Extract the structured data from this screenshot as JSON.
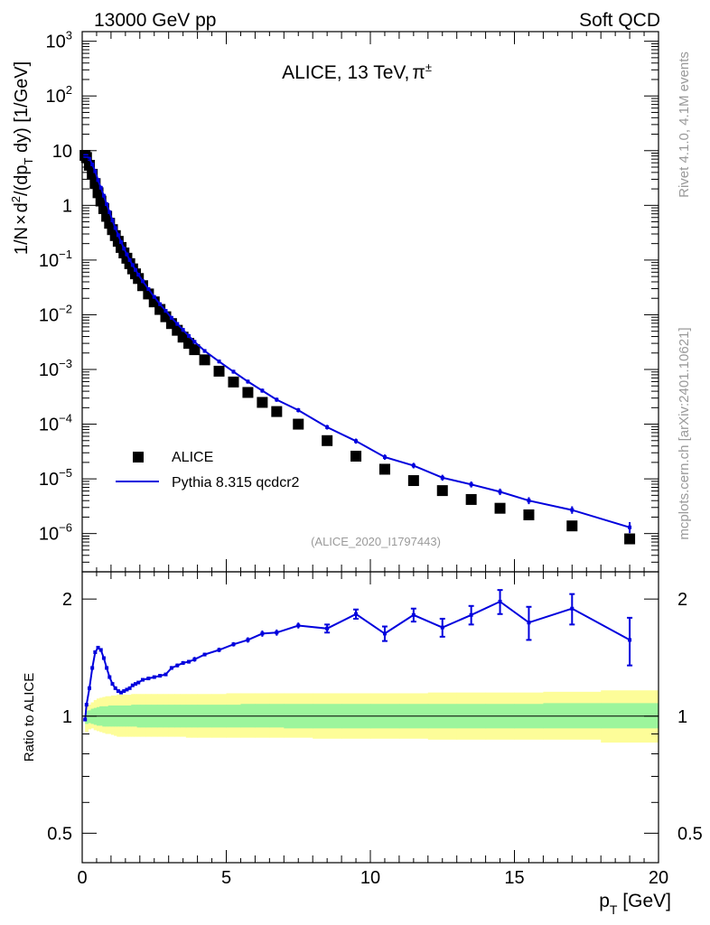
{
  "header": {
    "left_label": "13000 GeV pp",
    "right_label": "Soft QCD"
  },
  "side": {
    "rivet_label": "Rivet 4.1.0,  4.1M events",
    "mcplots_label": "mcplots.cern.ch [arXiv:2401.10621]"
  },
  "chart_data": [
    {
      "type": "scatter",
      "title": "ALICE, 13 TeV, π±",
      "title_main": "ALICE, 13 TeV,",
      "title_particle": "π",
      "title_particle_sup": "±",
      "analysis_label": "(ALICE_2020_I1797443)",
      "ylabel": "1/N × d²/(dp_T dy) [1/GeV]",
      "ylabel_parts": {
        "a": "1/N",
        "times": "×",
        "d": "d",
        "sq": "2",
        "b": "/(dp",
        "sub": "T",
        "c": " dy) [1/GeV]"
      },
      "yscale": "log",
      "ylim": [
        2e-07,
        1500
      ],
      "xlim": [
        0,
        20
      ],
      "ytick_labels": [
        {
          "value": 1e-06,
          "base": "10",
          "exp": "−6"
        },
        {
          "value": 1e-05,
          "base": "10",
          "exp": "−5"
        },
        {
          "value": 0.0001,
          "base": "10",
          "exp": "−4"
        },
        {
          "value": 0.001,
          "base": "10",
          "exp": "−3"
        },
        {
          "value": 0.01,
          "base": "10",
          "exp": "−2"
        },
        {
          "value": 0.1,
          "base": "10",
          "exp": "−1"
        },
        {
          "value": 1,
          "base": "1",
          "exp": ""
        },
        {
          "value": 10,
          "base": "10",
          "exp": ""
        },
        {
          "value": 100,
          "base": "10",
          "exp": "2"
        },
        {
          "value": 1000,
          "base": "10",
          "exp": "3"
        }
      ],
      "legend": {
        "placement": "lower-left",
        "entries": [
          {
            "label": "ALICE",
            "marker": "square",
            "color": "#000000"
          },
          {
            "label": "Pythia 8.315 qcdcr2",
            "marker": "line",
            "color": "#0000dd"
          }
        ]
      },
      "series": [
        {
          "name": "ALICE",
          "style": "markers",
          "color": "#000000",
          "x": [
            0.1,
            0.15,
            0.25,
            0.35,
            0.45,
            0.55,
            0.65,
            0.75,
            0.85,
            0.95,
            1.05,
            1.15,
            1.25,
            1.35,
            1.45,
            1.55,
            1.65,
            1.75,
            1.85,
            1.95,
            2.1,
            2.3,
            2.5,
            2.7,
            2.9,
            3.1,
            3.3,
            3.5,
            3.7,
            3.9,
            4.25,
            4.75,
            5.25,
            5.75,
            6.25,
            6.75,
            7.5,
            8.5,
            9.5,
            10.5,
            11.5,
            12.5,
            13.5,
            14.5,
            15.5,
            17.0,
            19.0
          ],
          "y": [
            8.2,
            7.5,
            5.4,
            3.7,
            2.5,
            1.7,
            1.2,
            0.87,
            0.63,
            0.47,
            0.36,
            0.28,
            0.22,
            0.17,
            0.135,
            0.108,
            0.086,
            0.069,
            0.056,
            0.046,
            0.034,
            0.024,
            0.0172,
            0.0125,
            0.0092,
            0.0069,
            0.0052,
            0.0039,
            0.003,
            0.0023,
            0.0015,
            0.00093,
            0.00059,
            0.00038,
            0.00025,
            0.00017,
            0.0001,
            5e-05,
            2.6e-05,
            1.5e-05,
            9.3e-06,
            6.1e-06,
            4.2e-06,
            2.9e-06,
            2.2e-06,
            1.38e-06,
            8e-07
          ]
        },
        {
          "name": "Pythia 8.315 qcdcr2",
          "style": "line",
          "color": "#0000dd",
          "x": [
            0.1,
            0.15,
            0.25,
            0.35,
            0.45,
            0.55,
            0.65,
            0.75,
            0.85,
            0.95,
            1.05,
            1.15,
            1.25,
            1.35,
            1.45,
            1.55,
            1.65,
            1.75,
            1.85,
            1.95,
            2.1,
            2.3,
            2.5,
            2.7,
            2.9,
            3.1,
            3.3,
            3.5,
            3.7,
            3.9,
            4.25,
            4.75,
            5.25,
            5.75,
            6.25,
            6.75,
            7.5,
            8.5,
            9.5,
            10.5,
            11.5,
            12.5,
            13.5,
            14.5,
            15.5,
            17.0,
            19.0
          ],
          "y": [
            8.0,
            8.0,
            7.1,
            5.6,
            4.2,
            2.9,
            2.1,
            1.5,
            1.05,
            0.75,
            0.53,
            0.385,
            0.285,
            0.213,
            0.162,
            0.127,
            0.1,
            0.081,
            0.066,
            0.054,
            0.041,
            0.0295,
            0.0212,
            0.0156,
            0.0118,
            0.0088,
            0.0068,
            0.0053,
            0.0041,
            0.0032,
            0.00218,
            0.0014,
            0.00091,
            0.0006,
            0.00041,
            0.00028,
            0.00018,
            8.8e-05,
            4.9e-05,
            2.5e-05,
            1.75e-05,
            1.05e-05,
            7.9e-06,
            5.8e-06,
            4e-06,
            2.7e-06,
            1.3e-06
          ],
          "yerr": [
            0.03,
            0.03,
            0.03,
            0.02,
            0.015,
            0.01,
            0.008,
            0.005,
            0.004,
            0.003,
            0.002,
            0.0015,
            0.001,
            0.0008,
            0.0006,
            0.0005,
            0.0004,
            0.0003,
            0.0003,
            0.0002,
            0.0002,
            0.0001,
            0.0001,
            0.0001,
            5e-05,
            4e-05,
            3e-05,
            3e-05,
            2e-05,
            2e-05,
            1e-05,
            1e-05,
            8e-06,
            6e-06,
            5e-06,
            4e-06,
            3e-06,
            2e-06,
            1.5e-06,
            9e-07,
            7e-07,
            5e-07,
            4e-07,
            3.5e-07,
            2.8e-07,
            2.2e-07,
            2e-07
          ]
        }
      ]
    },
    {
      "type": "line",
      "ylabel": "Ratio to ALICE",
      "xlabel": "p_T [GeV]",
      "xlabel_parts": {
        "p": "p",
        "sub": "T",
        "unit": " [GeV]"
      },
      "xlim": [
        0,
        20
      ],
      "ylim": [
        0.42,
        2.35
      ],
      "yscale": "log",
      "xticks": [
        0,
        5,
        10,
        15,
        20
      ],
      "xtick_labels": [
        "0",
        "5",
        "10",
        "15",
        "20"
      ],
      "yticks": [
        0.5,
        1,
        2
      ],
      "ytick_labels": [
        "0.5",
        "1",
        "2"
      ],
      "reference_line": 1,
      "bands": {
        "bin_edges": [
          0.1,
          0.2,
          0.3,
          0.4,
          0.5,
          0.6,
          0.7,
          0.8,
          0.9,
          1.0,
          1.1,
          1.2,
          1.3,
          1.4,
          1.5,
          1.6,
          1.7,
          1.8,
          1.9,
          2.0,
          2.2,
          2.4,
          2.6,
          2.8,
          3.0,
          3.2,
          3.4,
          3.6,
          3.8,
          4.0,
          4.5,
          5.0,
          5.5,
          6.0,
          6.5,
          7.0,
          8.0,
          9.0,
          10.0,
          11.0,
          12.0,
          13.0,
          14.0,
          15.0,
          16.0,
          18.0,
          20.0
        ],
        "outer_low": [
          0.91,
          0.925,
          0.93,
          0.92,
          0.915,
          0.91,
          0.905,
          0.9,
          0.9,
          0.895,
          0.89,
          0.885,
          0.885,
          0.885,
          0.885,
          0.885,
          0.885,
          0.885,
          0.885,
          0.885,
          0.885,
          0.885,
          0.885,
          0.885,
          0.885,
          0.885,
          0.885,
          0.88,
          0.88,
          0.88,
          0.88,
          0.88,
          0.88,
          0.88,
          0.88,
          0.88,
          0.875,
          0.875,
          0.875,
          0.875,
          0.87,
          0.87,
          0.87,
          0.87,
          0.87,
          0.855
        ],
        "outer_high": [
          1.065,
          1.07,
          1.085,
          1.1,
          1.11,
          1.115,
          1.12,
          1.125,
          1.125,
          1.13,
          1.13,
          1.135,
          1.135,
          1.135,
          1.135,
          1.135,
          1.14,
          1.14,
          1.14,
          1.14,
          1.14,
          1.14,
          1.14,
          1.14,
          1.14,
          1.14,
          1.14,
          1.14,
          1.14,
          1.14,
          1.14,
          1.145,
          1.145,
          1.145,
          1.145,
          1.145,
          1.145,
          1.145,
          1.145,
          1.145,
          1.15,
          1.15,
          1.15,
          1.15,
          1.155,
          1.165
        ],
        "inner_low": [
          0.955,
          0.96,
          0.955,
          0.95,
          0.945,
          0.945,
          0.94,
          0.94,
          0.94,
          0.94,
          0.94,
          0.94,
          0.94,
          0.94,
          0.94,
          0.94,
          0.94,
          0.94,
          0.935,
          0.935,
          0.935,
          0.935,
          0.935,
          0.935,
          0.935,
          0.935,
          0.935,
          0.935,
          0.935,
          0.935,
          0.935,
          0.935,
          0.935,
          0.935,
          0.935,
          0.93,
          0.93,
          0.93,
          0.93,
          0.93,
          0.93,
          0.93,
          0.93,
          0.93,
          0.93,
          0.93
        ],
        "inner_high": [
          1.03,
          1.035,
          1.045,
          1.05,
          1.055,
          1.06,
          1.06,
          1.06,
          1.065,
          1.065,
          1.065,
          1.065,
          1.065,
          1.065,
          1.065,
          1.065,
          1.07,
          1.07,
          1.07,
          1.07,
          1.07,
          1.07,
          1.07,
          1.07,
          1.07,
          1.07,
          1.07,
          1.07,
          1.07,
          1.07,
          1.07,
          1.07,
          1.075,
          1.075,
          1.075,
          1.075,
          1.075,
          1.075,
          1.075,
          1.075,
          1.075,
          1.075,
          1.075,
          1.075,
          1.08,
          1.08
        ],
        "inner_color": "#9cf59c",
        "outer_color": "#fdfd99"
      },
      "series": [
        {
          "name": "Pythia 8.315 qcdcr2 / ALICE",
          "color": "#0000dd",
          "x": [
            0.1,
            0.15,
            0.25,
            0.35,
            0.45,
            0.55,
            0.65,
            0.75,
            0.85,
            0.95,
            1.05,
            1.15,
            1.25,
            1.35,
            1.45,
            1.55,
            1.65,
            1.75,
            1.85,
            1.95,
            2.1,
            2.3,
            2.5,
            2.7,
            2.9,
            3.1,
            3.3,
            3.5,
            3.7,
            3.9,
            4.25,
            4.75,
            5.25,
            5.75,
            6.25,
            6.75,
            7.5,
            8.5,
            9.5,
            10.5,
            11.5,
            12.5,
            13.5,
            14.5,
            15.5,
            17.0,
            19.0
          ],
          "y": [
            0.98,
            1.07,
            1.18,
            1.33,
            1.46,
            1.5,
            1.48,
            1.41,
            1.33,
            1.26,
            1.21,
            1.18,
            1.16,
            1.15,
            1.16,
            1.17,
            1.18,
            1.2,
            1.21,
            1.22,
            1.24,
            1.25,
            1.26,
            1.27,
            1.28,
            1.33,
            1.35,
            1.37,
            1.38,
            1.4,
            1.44,
            1.48,
            1.53,
            1.57,
            1.63,
            1.64,
            1.71,
            1.68,
            1.83,
            1.63,
            1.82,
            1.69,
            1.82,
            1.97,
            1.74,
            1.89,
            1.57
          ],
          "yerr": [
            0.01,
            0.01,
            0.01,
            0.01,
            0.01,
            0.01,
            0.01,
            0.01,
            0.01,
            0.01,
            0.01,
            0.01,
            0.01,
            0.01,
            0.01,
            0.01,
            0.01,
            0.01,
            0.01,
            0.01,
            0.01,
            0.01,
            0.01,
            0.01,
            0.01,
            0.015,
            0.015,
            0.015,
            0.015,
            0.02,
            0.015,
            0.02,
            0.02,
            0.025,
            0.03,
            0.03,
            0.03,
            0.04,
            0.05,
            0.07,
            0.07,
            0.09,
            0.1,
            0.14,
            0.17,
            0.17,
            0.22
          ]
        }
      ]
    }
  ]
}
